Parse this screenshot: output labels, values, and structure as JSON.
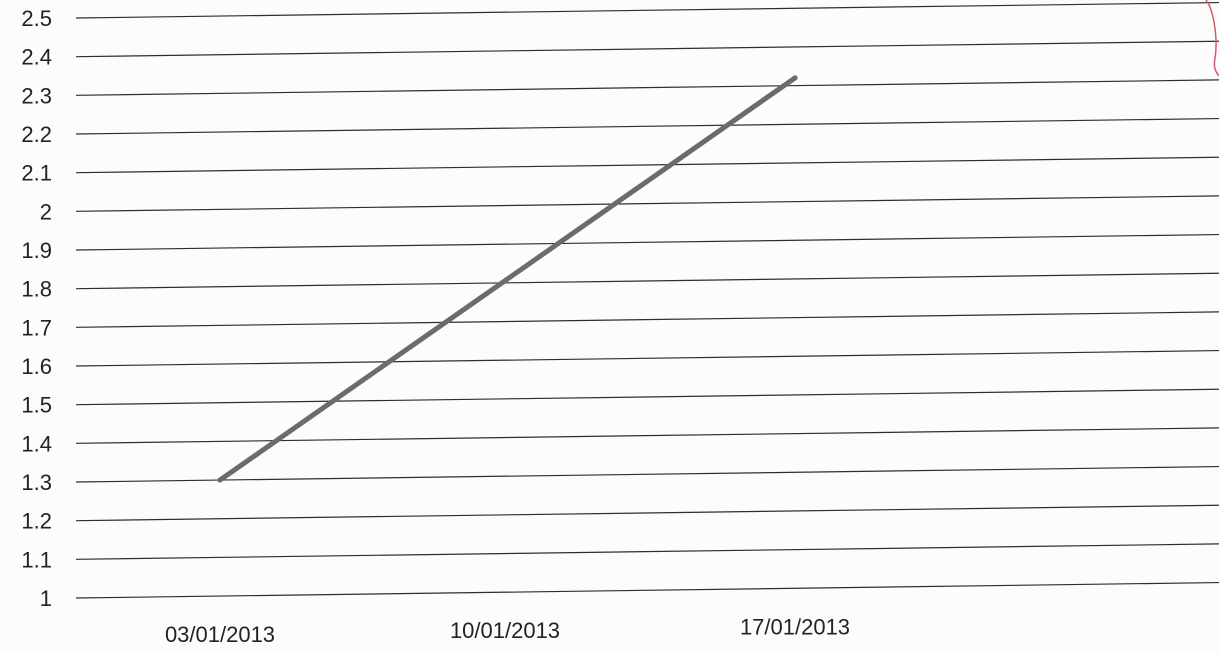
{
  "chart_data": {
    "type": "line",
    "title": "",
    "xlabel": "",
    "ylabel": "",
    "categories": [
      "03/01/2013",
      "10/01/2013",
      "17/01/2013"
    ],
    "x_ticks": [
      "03/01/2013",
      "10/01/2013",
      "17/01/2013"
    ],
    "y_ticks": [
      "1",
      "1.1",
      "1.2",
      "1.3",
      "1.4",
      "1.5",
      "1.6",
      "1.7",
      "1.8",
      "1.9",
      "2",
      "2.1",
      "2.2",
      "2.3",
      "2.4",
      "2.5"
    ],
    "ylim": [
      1,
      2.5
    ],
    "grid": true,
    "legend": "none",
    "series": [
      {
        "points": [
          {
            "x": "03/01/2013",
            "y": 1.3
          },
          {
            "x": "17/01/2013",
            "y": 2.32
          }
        ]
      }
    ]
  },
  "colors": {
    "line": "#6b6b6b",
    "grid": "#2e2e2e",
    "text": "#222222",
    "background": "#fcfcfc",
    "edge_mark": "#d65a6a"
  }
}
